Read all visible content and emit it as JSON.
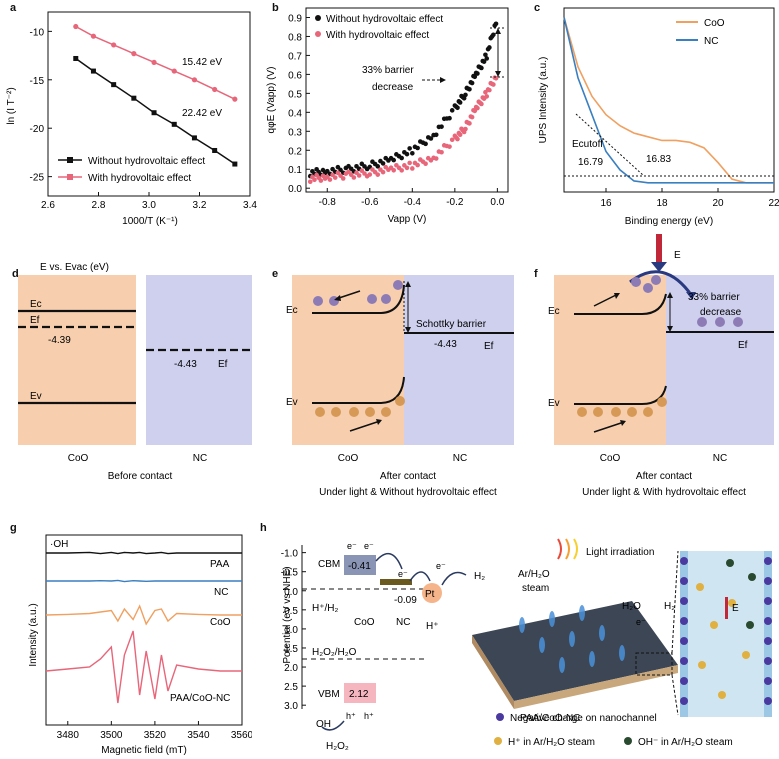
{
  "panel_letters": [
    "a",
    "b",
    "c",
    "d",
    "e",
    "f",
    "g",
    "h"
  ],
  "panel_a": {
    "ylabel": "ln (I T⁻²)",
    "xlabel": "1000/T (K⁻¹)",
    "xticks": [
      "2.6",
      "2.8",
      "3.0",
      "3.2",
      "3.4"
    ],
    "yticks": [
      "-10",
      "-15",
      "-20",
      "-25"
    ],
    "annotations": [
      "15.42 eV",
      "22.42 eV"
    ],
    "legend": [
      "Without hydrovoltaic effect",
      "With hydrovoltaic effect"
    ],
    "colors": {
      "without": "#111111",
      "with": "#e8667a"
    }
  },
  "panel_b": {
    "ylabel": "qφE (Vapp) (V)",
    "xlabel": "Vapp (V)",
    "xticks": [
      "-0.8",
      "-0.6",
      "-0.4",
      "-0.2",
      "0.0"
    ],
    "yticks": [
      "0.0",
      "0.1",
      "0.2",
      "0.3",
      "0.4",
      "0.5",
      "0.6",
      "0.7",
      "0.8",
      "0.9"
    ],
    "legend": [
      "Without hydrovoltaic effect",
      "With hydrovoltaic effect"
    ],
    "annotation": [
      "33% barrier",
      "decrease"
    ]
  },
  "panel_c": {
    "ylabel": "UPS Intensity (a.u.)",
    "xlabel": "Binding energy (eV)",
    "xticks": [
      "16",
      "18",
      "20",
      "22"
    ],
    "legend": [
      "CoO",
      "NC"
    ],
    "annotations": [
      "Ecutoff",
      "16.79",
      "16.83"
    ],
    "colors": {
      "CoO": "#f0a060",
      "NC": "#3a7fc0"
    }
  },
  "panel_d": {
    "title": "E vs. Evac (eV)",
    "levels": [
      "Ec",
      "Ef",
      "Ev"
    ],
    "values": [
      "-4.39",
      "-4.43"
    ],
    "nc_ef": "Ef",
    "materials": [
      "CoO",
      "NC"
    ],
    "caption": "Before contact"
  },
  "panel_e": {
    "levels": [
      "Ec",
      "Ev"
    ],
    "barrier_label": "Schottky barrier",
    "value": "-4.43",
    "ef": "Ef",
    "materials": [
      "CoO",
      "NC"
    ],
    "caption": [
      "After contact",
      "Under light & Without hydrovoltaic effect"
    ]
  },
  "panel_f": {
    "field": "E",
    "levels": [
      "Ec",
      "Ev"
    ],
    "barrier_label": [
      "33% barrier",
      "decrease"
    ],
    "ef": "Ef",
    "materials": [
      "CoO",
      "NC"
    ],
    "caption": [
      "After contact",
      "Under light & With hydrovoltaic effect"
    ]
  },
  "panel_g": {
    "top_label": "·OH",
    "ylabel": "Intensity (a.u.)",
    "xlabel": "Magnetic field (mT)",
    "xticks": [
      "3480",
      "3500",
      "3520",
      "3540",
      "3560"
    ],
    "traces": [
      "PAA",
      "NC",
      "CoO",
      "PAA/CoO-NC"
    ],
    "colors": {
      "PAA": "#111111",
      "NC": "#3a7fc0",
      "CoO": "#f0a060",
      "PAA/CoO-NC": "#e8667a"
    }
  },
  "panel_h": {
    "ylabel": "Potential (eV vs NHE)",
    "yticks": [
      "-1.0",
      "-0.5",
      "0.0",
      "0.5",
      "1.0",
      "1.5",
      "2.0",
      "2.5",
      "3.0"
    ],
    "cbm_label": "CBM",
    "cbm_value": "-0.41",
    "vbm_label": "VBM",
    "vbm_value": "2.12",
    "nc_value": "-0.09",
    "couples": [
      "H⁺/H₂",
      "H₂O₂/H₂O"
    ],
    "materials": [
      "CoO",
      "NC"
    ],
    "pt": "Pt",
    "electrons": [
      "e⁻",
      "e⁻",
      "e⁻",
      "e⁻"
    ],
    "holes": [
      "h⁺",
      "h⁺"
    ],
    "h2": "H₂",
    "h_plus": "H⁺",
    "oh": "OH",
    "h2o2": "H₂O₂",
    "steam": [
      "Ar/H₂O",
      "steam"
    ],
    "light": "Light irradiation",
    "h2o": "H₂O",
    "e_minus": "e⁻",
    "h2_right": "H₂",
    "membrane": "PAA/CoO-NC",
    "e_field": "E",
    "legend": [
      "Negative charge on nanochannel",
      "H⁺ in Ar/H₂O steam",
      "OH⁻ in Ar/H₂O steam"
    ]
  },
  "chart_data": [
    {
      "type": "line",
      "panel": "a",
      "xlabel": "1000/T (K⁻¹)",
      "ylabel": "ln (I T⁻²)",
      "xlim": [
        2.6,
        3.4
      ],
      "ylim": [
        -27,
        -8
      ],
      "x": [
        2.71,
        2.78,
        2.86,
        2.94,
        3.02,
        3.1,
        3.18,
        3.26,
        3.34
      ],
      "series": [
        {
          "name": "Without hydrovoltaic effect",
          "values": [
            -12.8,
            -14.1,
            -15.5,
            -16.9,
            -18.4,
            -19.6,
            -21.0,
            -22.3,
            -23.7
          ]
        },
        {
          "name": "With hydrovoltaic effect",
          "values": [
            -9.5,
            -10.5,
            -11.4,
            -12.3,
            -13.2,
            -14.1,
            -15.0,
            -16.0,
            -17.0
          ]
        }
      ]
    },
    {
      "type": "scatter",
      "panel": "b",
      "xlabel": "Vapp (V)",
      "ylabel": "qφE (Vapp) (V)",
      "xlim": [
        -0.9,
        0.05
      ],
      "ylim": [
        -0.02,
        0.95
      ],
      "x": [
        -0.88,
        -0.8,
        -0.7,
        -0.6,
        -0.5,
        -0.4,
        -0.3,
        -0.2,
        -0.15,
        -0.1,
        -0.05,
        0.0
      ],
      "series": [
        {
          "name": "Without hydrovoltaic effect",
          "values": [
            0.08,
            0.09,
            0.1,
            0.12,
            0.15,
            0.2,
            0.28,
            0.42,
            0.5,
            0.6,
            0.7,
            0.9
          ]
        },
        {
          "name": "With hydrovoltaic effect",
          "values": [
            0.05,
            0.06,
            0.07,
            0.08,
            0.1,
            0.12,
            0.16,
            0.26,
            0.32,
            0.42,
            0.5,
            0.6
          ]
        }
      ]
    },
    {
      "type": "line",
      "panel": "c",
      "xlabel": "Binding energy (eV)",
      "ylabel": "UPS Intensity (a.u.)",
      "xlim": [
        14.5,
        22
      ],
      "ylim": [
        0,
        1
      ],
      "x": [
        14.5,
        15,
        15.5,
        16,
        16.5,
        17,
        17.5,
        18,
        18.5,
        19,
        19.5,
        20,
        20.5,
        21,
        22
      ],
      "series": [
        {
          "name": "CoO",
          "values": [
            0.95,
            0.68,
            0.52,
            0.42,
            0.36,
            0.32,
            0.3,
            0.28,
            0.28,
            0.27,
            0.24,
            0.16,
            0.07,
            0.05,
            0.05
          ]
        },
        {
          "name": "NC",
          "values": [
            0.95,
            0.62,
            0.42,
            0.22,
            0.12,
            0.06,
            0.05,
            0.05,
            0.05,
            0.05,
            0.05,
            0.05,
            0.05,
            0.05,
            0.05
          ]
        }
      ]
    },
    {
      "type": "line",
      "panel": "g",
      "xlabel": "Magnetic field (mT)",
      "ylabel": "Intensity (a.u.)",
      "xlim": [
        3470,
        3560
      ],
      "x": [
        3470,
        3480,
        3490,
        3495,
        3500,
        3503,
        3506,
        3510,
        3513,
        3516,
        3520,
        3523,
        3526,
        3530,
        3540,
        3550,
        3560
      ],
      "series": [
        {
          "name": "PAA",
          "values": [
            0,
            0,
            0.02,
            -0.02,
            0.02,
            -0.02,
            0.02,
            0,
            0.02,
            -0.02,
            0,
            0.02,
            -0.02,
            0,
            0,
            0,
            0
          ]
        },
        {
          "name": "NC",
          "values": [
            0,
            0,
            0,
            0.01,
            0,
            0.02,
            -0.02,
            0.01,
            0,
            -0.01,
            0,
            0,
            0,
            0,
            0,
            0,
            0
          ]
        },
        {
          "name": "CoO",
          "values": [
            0,
            0.02,
            0.05,
            0.1,
            0.15,
            -0.2,
            0.2,
            -0.15,
            0.3,
            -0.3,
            0.15,
            0.2,
            -0.2,
            0.05,
            0.02,
            0,
            0
          ]
        },
        {
          "name": "PAA/CoO-NC",
          "values": [
            0,
            0.05,
            0.1,
            0.3,
            0.6,
            -0.8,
            0.4,
            1.0,
            -0.6,
            0.5,
            -0.7,
            0.4,
            -0.5,
            0.15,
            0.05,
            0,
            0
          ]
        }
      ]
    }
  ]
}
